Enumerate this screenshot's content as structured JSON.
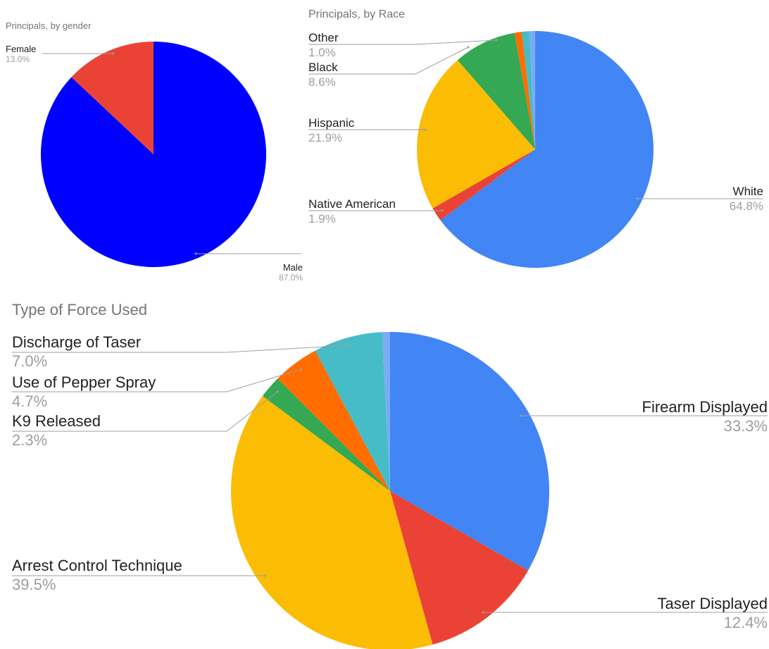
{
  "chart_data": [
    {
      "type": "pie",
      "title": "Principals, by gender",
      "slices": [
        {
          "label": "Male",
          "value": 87.0,
          "display": "87.0%",
          "color": "#0000ff"
        },
        {
          "label": "Female",
          "value": 13.0,
          "display": "13.0%",
          "color": "#ea4335"
        }
      ]
    },
    {
      "type": "pie",
      "title": "Principals, by Race",
      "slices": [
        {
          "label": "White",
          "value": 64.8,
          "display": "64.8%",
          "color": "#4285f4"
        },
        {
          "label": "Native American",
          "value": 1.9,
          "display": "1.9%",
          "color": "#ea4335"
        },
        {
          "label": "Hispanic",
          "value": 21.9,
          "display": "21.9%",
          "color": "#fbbc04"
        },
        {
          "label": "Black",
          "value": 8.6,
          "display": "8.6%",
          "color": "#34a853"
        },
        {
          "label": "Other",
          "value": 1.0,
          "display": "1.0%",
          "color": "#ff6d01"
        },
        {
          "label": "",
          "value": 1.0,
          "display": "",
          "color": "#46bdc6"
        },
        {
          "label": "",
          "value": 0.8,
          "display": "",
          "color": "#7baaf7"
        }
      ]
    },
    {
      "type": "pie",
      "title": "Type of Force Used",
      "slices": [
        {
          "label": "Firearm Displayed",
          "value": 33.3,
          "display": "33.3%",
          "color": "#4285f4"
        },
        {
          "label": "Taser Displayed",
          "value": 12.4,
          "display": "12.4%",
          "color": "#ea4335"
        },
        {
          "label": "Arrest Control Technique",
          "value": 39.5,
          "display": "39.5%",
          "color": "#fbbc04"
        },
        {
          "label": "K9 Released",
          "value": 2.3,
          "display": "2.3%",
          "color": "#34a853"
        },
        {
          "label": "Use of Pepper Spray",
          "value": 4.7,
          "display": "4.7%",
          "color": "#ff6d01"
        },
        {
          "label": "Discharge of Taser",
          "value": 7.0,
          "display": "7.0%",
          "color": "#46bdc6"
        },
        {
          "label": "",
          "value": 0.8,
          "display": "",
          "color": "#7baaf7"
        }
      ]
    }
  ]
}
